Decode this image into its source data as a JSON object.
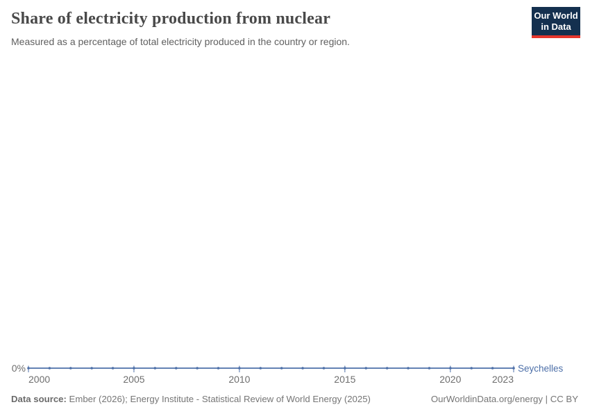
{
  "header": {
    "title": "Share of electricity production from nuclear",
    "subtitle": "Measured as a percentage of total electricity produced in the country or region."
  },
  "logo": {
    "line1": "Our World",
    "line2": "in Data",
    "bg_color": "#14304f",
    "bar_color": "#e5362d"
  },
  "chart_data": {
    "type": "line",
    "title": "Share of electricity production from nuclear",
    "unit": "%",
    "grid": false,
    "legend": "line-end-label",
    "xlim": [
      2000,
      2023
    ],
    "x": [
      2000,
      2001,
      2002,
      2003,
      2004,
      2005,
      2006,
      2007,
      2008,
      2009,
      2010,
      2011,
      2012,
      2013,
      2014,
      2015,
      2016,
      2017,
      2018,
      2019,
      2020,
      2021,
      2022,
      2023
    ],
    "series": [
      {
        "name": "Seychelles",
        "color": "#4c6fa8",
        "values": [
          0,
          0,
          0,
          0,
          0,
          0,
          0,
          0,
          0,
          0,
          0,
          0,
          0,
          0,
          0,
          0,
          0,
          0,
          0,
          0,
          0,
          0,
          0,
          0
        ]
      }
    ],
    "x_ticks": [
      2000,
      2005,
      2010,
      2015,
      2020,
      2023
    ],
    "x_tick_labels": [
      "2000",
      "2005",
      "2010",
      "2015",
      "2020",
      "2023"
    ],
    "y_ticks": [
      "0%"
    ],
    "y_zero_label": "0%"
  },
  "footer": {
    "source_label": "Data source:",
    "source_text": " Ember (2026); Energy Institute - Statistical Review of World Energy (2025)",
    "right_text": "OurWorldinData.org/energy | CC BY"
  }
}
